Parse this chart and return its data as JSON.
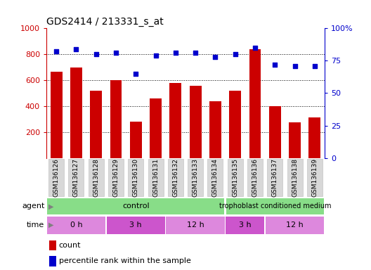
{
  "title": "GDS2414 / 213331_s_at",
  "samples": [
    "GSM136126",
    "GSM136127",
    "GSM136128",
    "GSM136129",
    "GSM136130",
    "GSM136131",
    "GSM136132",
    "GSM136133",
    "GSM136134",
    "GSM136135",
    "GSM136136",
    "GSM136137",
    "GSM136138",
    "GSM136139"
  ],
  "counts": [
    665,
    700,
    520,
    600,
    280,
    460,
    580,
    555,
    435,
    520,
    840,
    400,
    275,
    315
  ],
  "percentiles": [
    82,
    84,
    80,
    81,
    65,
    79,
    81,
    81,
    78,
    80,
    85,
    72,
    71,
    71
  ],
  "ylim_left": [
    0,
    1000
  ],
  "ylim_right": [
    0,
    100
  ],
  "yticks_left": [
    200,
    400,
    600,
    800,
    1000
  ],
  "yticks_right": [
    0,
    25,
    50,
    75,
    100
  ],
  "bar_color": "#cc0000",
  "dot_color": "#0000cc",
  "bar_width": 0.6,
  "control_color": "#88dd88",
  "trophoblast_color": "#88dd88",
  "time_color_light": "#dd88dd",
  "time_color_dark": "#cc55cc",
  "legend_count_color": "#cc0000",
  "legend_dot_color": "#0000cc",
  "background_color": "#ffffff",
  "tick_label_fontsize": 6.5,
  "title_fontsize": 10,
  "label_gray": "#cccccc"
}
